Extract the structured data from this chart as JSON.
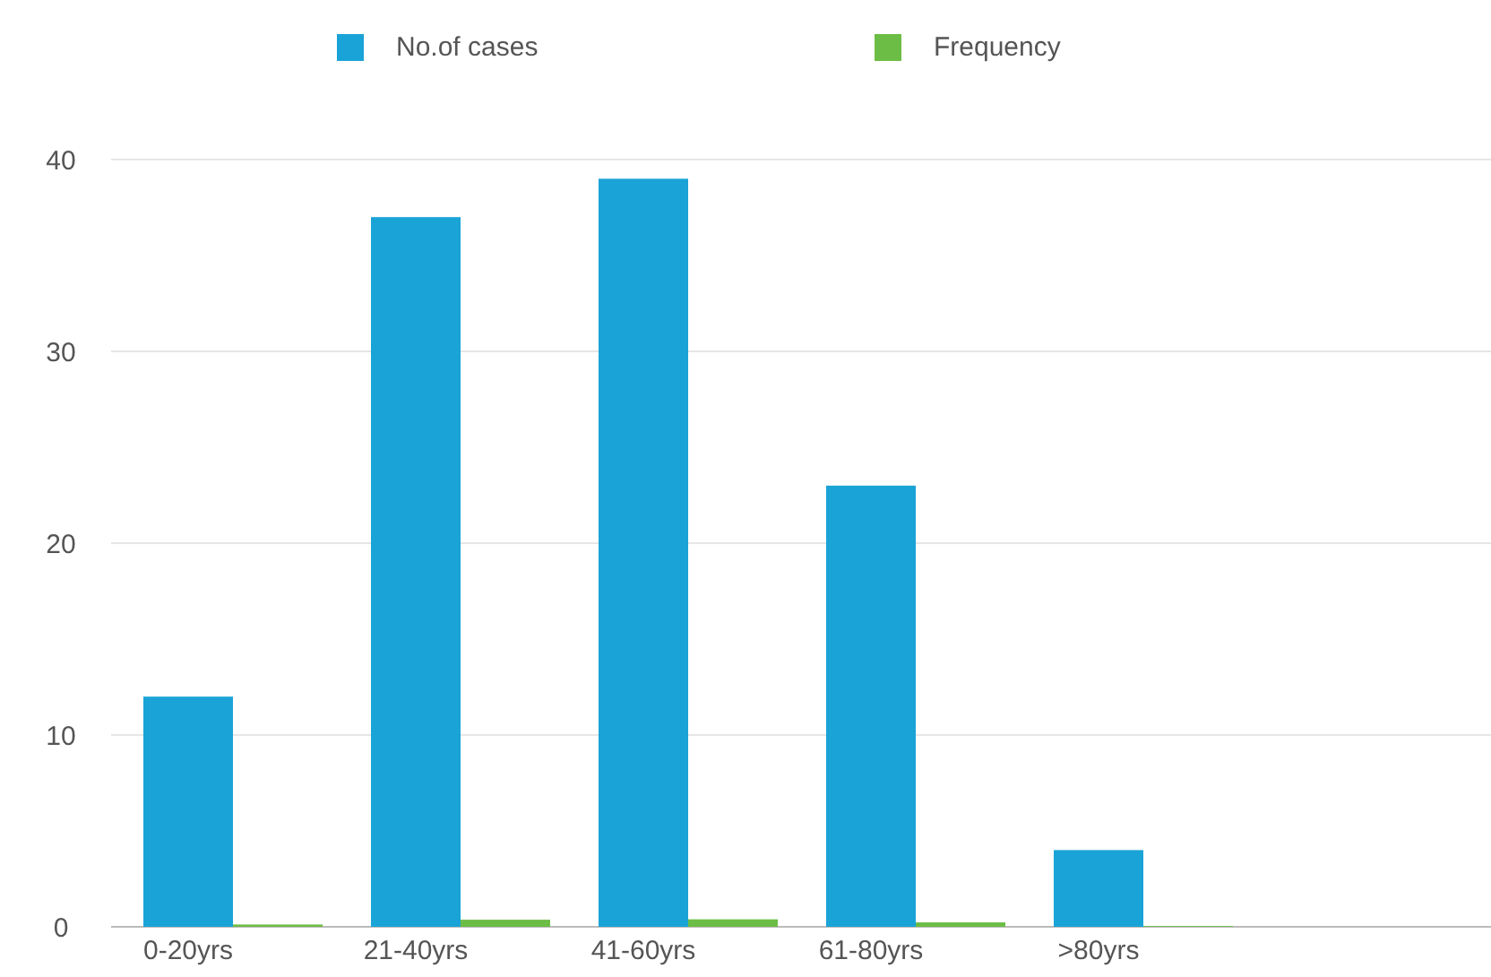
{
  "chart_data": {
    "type": "bar",
    "categories": [
      "0-20yrs",
      "21-40yrs",
      "41-60yrs",
      "61-80yrs",
      ">80yrs"
    ],
    "series": [
      {
        "name": "No.of cases",
        "color": "#1aa3d6",
        "values": [
          12,
          37,
          39,
          23,
          4
        ]
      },
      {
        "name": "Frequency",
        "color": "#6cbd45",
        "values": [
          0.12,
          0.37,
          0.39,
          0.23,
          0.04
        ]
      }
    ],
    "ylim": [
      0,
      40
    ],
    "yticks": [
      0,
      10,
      20,
      30,
      40
    ],
    "grid": "y",
    "legend": "top"
  }
}
